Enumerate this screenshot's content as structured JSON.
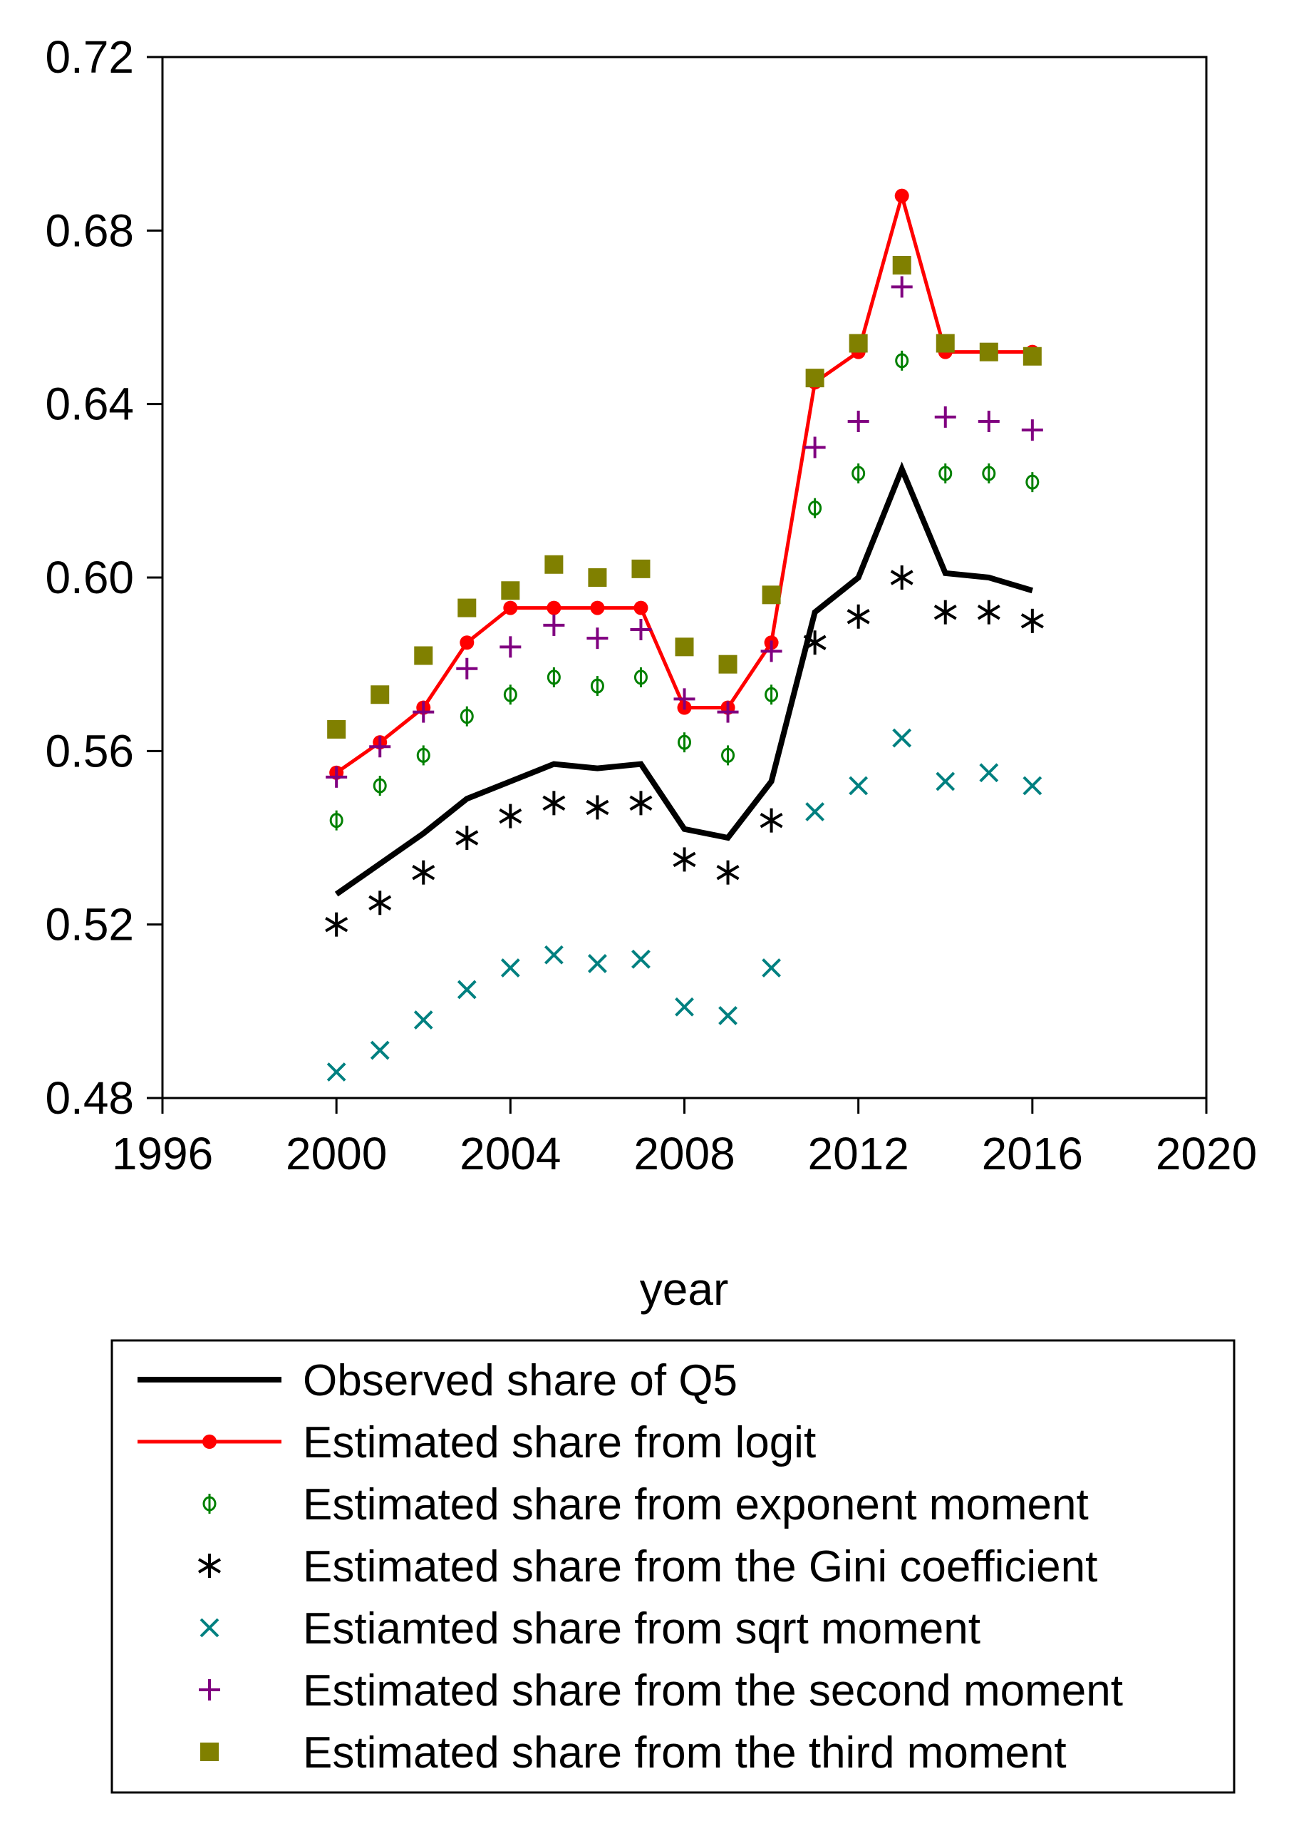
{
  "chart_data": {
    "type": "line",
    "title": "",
    "xlabel": "year",
    "ylabel": "",
    "xlim": [
      1996,
      2020
    ],
    "ylim": [
      0.48,
      0.72
    ],
    "x_ticks": [
      "1996",
      "2000",
      "2004",
      "2008",
      "2012",
      "2016",
      "2020"
    ],
    "y_ticks": [
      "0.48",
      "0.52",
      "0.56",
      "0.60",
      "0.64",
      "0.68",
      "0.72"
    ],
    "grid": false,
    "legend_position": "bottom",
    "x": [
      2000,
      2001,
      2002,
      2003,
      2004,
      2005,
      2006,
      2007,
      2008,
      2009,
      2010,
      2011,
      2012,
      2013,
      2014,
      2015,
      2016
    ],
    "series": [
      {
        "name": "Observed share of Q5",
        "style": "line",
        "color": "#000000",
        "values": [
          0.527,
          0.534,
          0.541,
          0.549,
          0.553,
          0.557,
          0.556,
          0.557,
          0.542,
          0.54,
          0.553,
          0.592,
          0.6,
          0.625,
          0.601,
          0.6,
          0.597
        ]
      },
      {
        "name": "Estimated share from logit",
        "style": "line-dot",
        "color": "#ff0000",
        "values": [
          0.555,
          0.562,
          0.57,
          0.585,
          0.593,
          0.593,
          0.593,
          0.593,
          0.57,
          0.57,
          0.585,
          0.645,
          0.652,
          0.688,
          0.652,
          0.652,
          0.652
        ]
      },
      {
        "name": "Estimated share from exponent moment",
        "style": "marker-phi",
        "color": "#008000",
        "values": [
          0.544,
          0.552,
          0.559,
          0.568,
          0.573,
          0.577,
          0.575,
          0.577,
          0.562,
          0.559,
          0.573,
          0.616,
          0.624,
          0.65,
          0.624,
          0.624,
          0.622
        ]
      },
      {
        "name": "Estimated share from the Gini coefficient",
        "style": "marker-asterisk",
        "color": "#000000",
        "values": [
          0.52,
          0.525,
          0.532,
          0.54,
          0.545,
          0.548,
          0.547,
          0.548,
          0.535,
          0.532,
          0.544,
          0.585,
          0.591,
          0.6,
          0.592,
          0.592,
          0.59
        ]
      },
      {
        "name": "Estiamted share from sqrt moment",
        "style": "marker-x",
        "color": "#008080",
        "values": [
          0.486,
          0.491,
          0.498,
          0.505,
          0.51,
          0.513,
          0.511,
          0.512,
          0.501,
          0.499,
          0.51,
          0.546,
          0.552,
          0.563,
          0.553,
          0.555,
          0.552
        ]
      },
      {
        "name": "Estimated share from the second moment",
        "style": "marker-plus",
        "color": "#800080",
        "values": [
          0.554,
          0.561,
          0.569,
          0.579,
          0.584,
          0.589,
          0.586,
          0.588,
          0.572,
          0.569,
          0.583,
          0.63,
          0.636,
          0.667,
          0.637,
          0.636,
          0.634
        ]
      },
      {
        "name": "Estimated share from the third moment",
        "style": "marker-square",
        "color": "#808000",
        "values": [
          0.565,
          0.573,
          0.582,
          0.593,
          0.597,
          0.603,
          0.6,
          0.602,
          0.584,
          0.58,
          0.596,
          0.646,
          0.654,
          0.672,
          0.654,
          0.652,
          0.651
        ]
      }
    ]
  }
}
